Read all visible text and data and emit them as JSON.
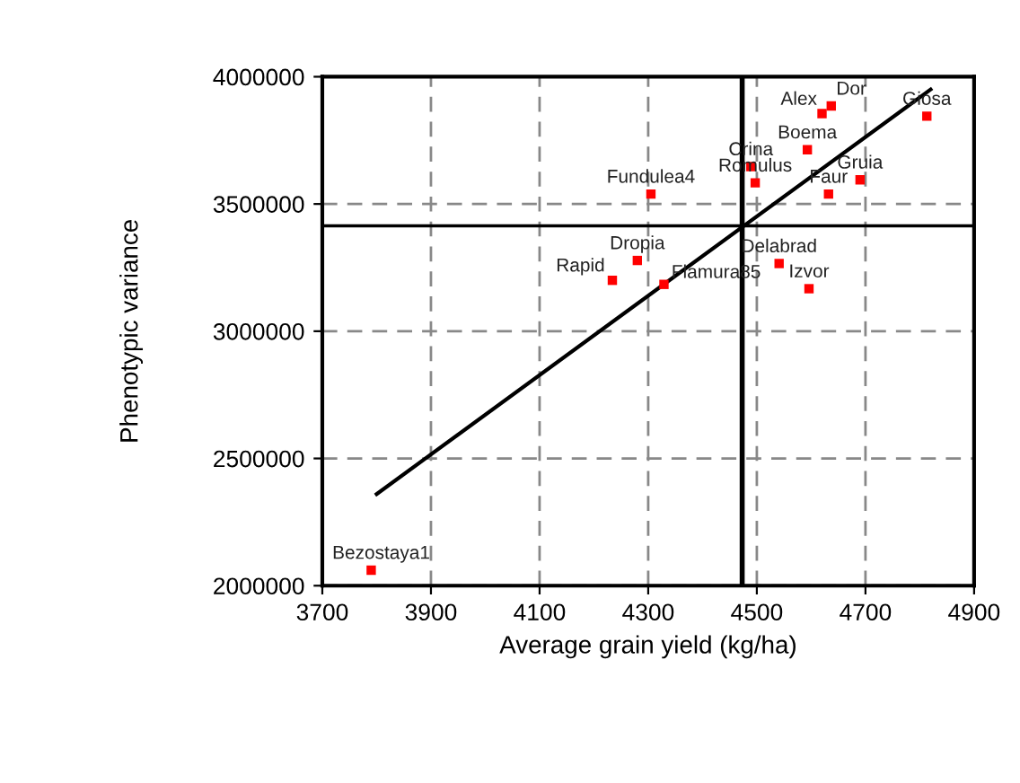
{
  "chart_data": {
    "type": "scatter",
    "xlabel": "Average grain yield (kg/ha)",
    "ylabel": "Phenotypic variance",
    "xlim": [
      3700,
      4900
    ],
    "xticks": [
      3700,
      3900,
      4100,
      4300,
      4500,
      4700,
      4900
    ],
    "ylim": [
      2000000,
      4000000
    ],
    "yticks": [
      2000000,
      2500000,
      3000000,
      3500000,
      4000000
    ],
    "grid": true,
    "marker": "square",
    "series": [
      {
        "color": "#ff0000",
        "x": [
          4620,
          4637,
          4813,
          4593,
          4489,
          4497,
          4690,
          4632,
          4305,
          4280,
          4234,
          4329,
          4541,
          4596,
          3790
        ],
        "values": [
          3855000,
          3885000,
          3845000,
          3713000,
          3647000,
          3583000,
          3595000,
          3539000,
          3539000,
          3278000,
          3200000,
          3184000,
          3266000,
          3167000,
          2061000
        ]
      },
      {
        "type": "line",
        "marker": "none",
        "color": "#000000",
        "x": [
          3800,
          4820
        ],
        "values": [
          2360000,
          3950000
        ]
      }
    ],
    "ref_lines": [
      {
        "axis": "x",
        "value": 4473,
        "color": "#000000"
      },
      {
        "axis": "y",
        "value": 3414000,
        "color": "#000000"
      }
    ],
    "annotations": [
      {
        "text": "Alex",
        "x": 4620,
        "y": 3855000
      },
      {
        "text": "Dor",
        "x": 4637,
        "y": 3885000
      },
      {
        "text": "Giosa",
        "x": 4813,
        "y": 3845000
      },
      {
        "text": "Boema",
        "x": 4593,
        "y": 3713000
      },
      {
        "text": "Crina",
        "x": 4489,
        "y": 3647000
      },
      {
        "text": "Romulus",
        "x": 4497,
        "y": 3583000
      },
      {
        "text": "Gruia",
        "x": 4690,
        "y": 3595000
      },
      {
        "text": "Faur",
        "x": 4632,
        "y": 3539000
      },
      {
        "text": "Fundulea4",
        "x": 4305,
        "y": 3539000
      },
      {
        "text": "Dropia",
        "x": 4280,
        "y": 3278000
      },
      {
        "text": "Rapid",
        "x": 4234,
        "y": 3200000
      },
      {
        "text": "Flamura85",
        "x": 4329,
        "y": 3184000
      },
      {
        "text": "Delabrad",
        "x": 4541,
        "y": 3266000
      },
      {
        "text": "Izvor",
        "x": 4596,
        "y": 3167000
      },
      {
        "text": "Bezostaya1",
        "x": 3790,
        "y": 2061000
      }
    ]
  }
}
